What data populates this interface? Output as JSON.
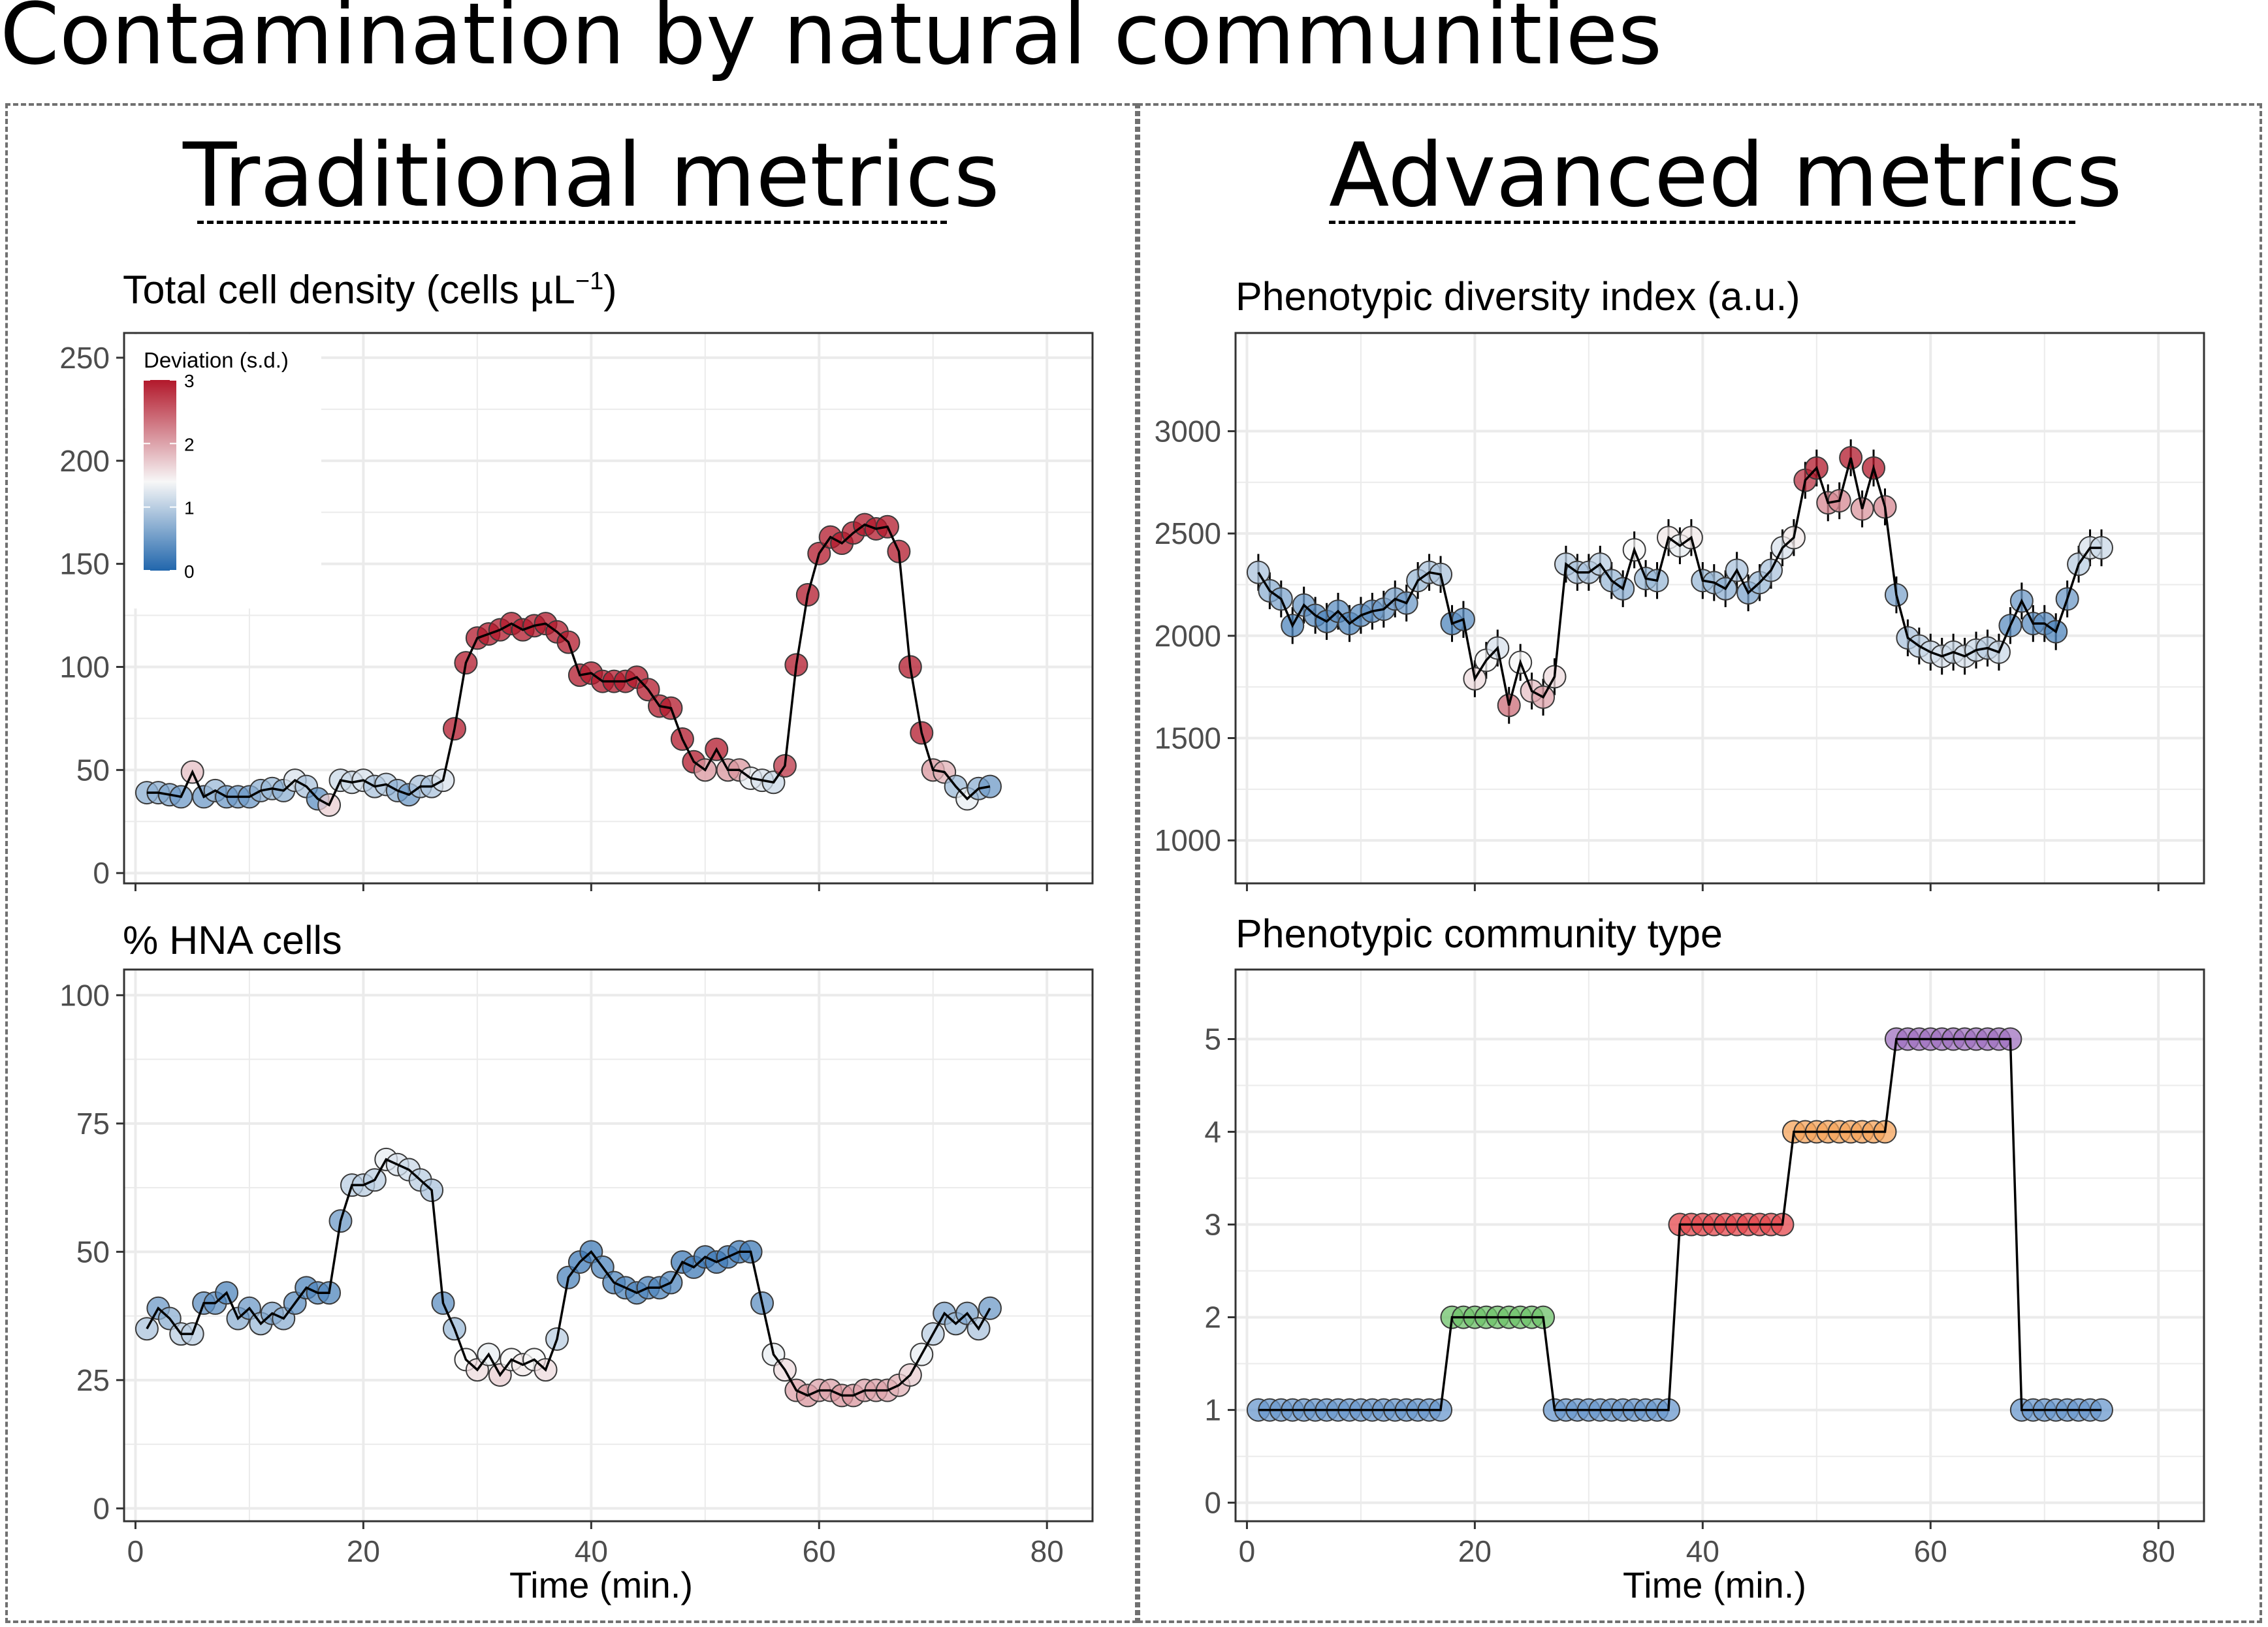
{
  "main_title": "Contamination by natural communities",
  "left_heading": "Traditional metrics",
  "right_heading": "Advanced metrics",
  "colors": {
    "line": "#000000",
    "panel_border": "#333333",
    "grid": "#ebebeb",
    "dashed_box": "#707070",
    "deviation_low": "#2166ac",
    "deviation_mid": "#f7f7f7",
    "deviation_high": "#b2182b",
    "community_type": {
      "1": "#6a98cd",
      "2": "#6dc26a",
      "3": "#e6484d",
      "4": "#f5a45b",
      "5": "#a072c0"
    }
  },
  "chart_data": [
    {
      "id": "density",
      "type": "scatter",
      "title": "Total cell density (cells µL",
      "title_sup": "−1",
      "title_end": ")",
      "xlabel": "",
      "xlim": [
        -1,
        84
      ],
      "ylim": [
        -5,
        262
      ],
      "xticks": [
        0,
        20,
        40,
        60,
        80
      ],
      "yticks": [
        0,
        50,
        100,
        150,
        200,
        250
      ],
      "x_tick_labels_shown": false,
      "grid": true,
      "legend": {
        "title": "Deviation (s.d.)",
        "labels": [
          "3",
          "2",
          "1",
          "0"
        ],
        "values": [
          3,
          2,
          1,
          0
        ],
        "placement": "top-left"
      },
      "colorby": "deviation",
      "x": [
        1,
        2,
        3,
        4,
        5,
        6,
        7,
        8,
        9,
        10,
        11,
        12,
        13,
        14,
        15,
        16,
        17,
        18,
        19,
        20,
        21,
        22,
        23,
        24,
        25,
        26,
        27,
        28,
        29,
        30,
        31,
        32,
        33,
        34,
        35,
        36,
        37,
        38,
        39,
        40,
        41,
        42,
        43,
        44,
        45,
        46,
        47,
        48,
        49,
        50,
        51,
        52,
        53,
        54,
        55,
        56,
        57,
        58,
        59,
        60,
        61,
        62,
        63,
        64,
        65,
        66,
        67,
        68,
        69,
        70,
        71,
        72,
        73,
        74,
        75
      ],
      "y": [
        39,
        39,
        38,
        37,
        49,
        37,
        40,
        37,
        37,
        37,
        40,
        41,
        40,
        45,
        42,
        36,
        33,
        45,
        44,
        45,
        42,
        43,
        40,
        38,
        42,
        42,
        45,
        70,
        102,
        114,
        116,
        118,
        121,
        118,
        120,
        121,
        117,
        112,
        96,
        97,
        93,
        93,
        93,
        95,
        89,
        81,
        80,
        65,
        54,
        50,
        60,
        50,
        50,
        46,
        45,
        44,
        52,
        101,
        135,
        155,
        163,
        160,
        165,
        169,
        167,
        168,
        156,
        100,
        68,
        50,
        49,
        42,
        36,
        41,
        42
      ],
      "deviation": [
        0.7,
        0.7,
        0.6,
        0.5,
        1.8,
        0.5,
        0.8,
        0.5,
        0.5,
        0.5,
        0.7,
        0.8,
        0.7,
        1.2,
        0.9,
        0.4,
        1.7,
        1.1,
        1.1,
        1.2,
        0.9,
        1,
        0.7,
        0.5,
        0.9,
        0.9,
        1.2,
        3,
        3,
        3,
        3,
        3,
        3,
        3,
        3,
        3,
        3,
        3,
        3,
        3,
        3,
        3,
        3,
        3,
        3,
        3,
        3,
        3,
        3,
        2.1,
        3,
        2.1,
        2.1,
        1.3,
        1.2,
        1.1,
        2.8,
        3,
        3,
        3,
        3,
        3,
        3,
        3,
        3,
        3,
        3,
        3,
        3,
        2.1,
        1.9,
        0.8,
        1.3,
        0.7,
        0.5
      ]
    },
    {
      "id": "hna",
      "type": "scatter",
      "title": "% HNA cells",
      "xlabel": "Time (min.)",
      "xlim": [
        -1,
        84
      ],
      "ylim": [
        -2.5,
        105
      ],
      "xticks": [
        0,
        20,
        40,
        60,
        80
      ],
      "yticks": [
        0,
        25,
        50,
        75,
        100
      ],
      "x_tick_labels_shown": true,
      "grid": true,
      "colorby": "deviation",
      "x": [
        1,
        2,
        3,
        4,
        5,
        6,
        7,
        8,
        9,
        10,
        11,
        12,
        13,
        14,
        15,
        16,
        17,
        18,
        19,
        20,
        21,
        22,
        23,
        24,
        25,
        26,
        27,
        28,
        29,
        30,
        31,
        32,
        33,
        34,
        35,
        36,
        37,
        38,
        39,
        40,
        41,
        42,
        43,
        44,
        45,
        46,
        47,
        48,
        49,
        50,
        51,
        52,
        53,
        54,
        55,
        56,
        57,
        58,
        59,
        60,
        61,
        62,
        63,
        64,
        65,
        66,
        67,
        68,
        69,
        70,
        71,
        72,
        73,
        74,
        75
      ],
      "y": [
        35,
        39,
        37,
        34,
        34,
        40,
        40,
        42,
        37,
        39,
        36,
        38,
        37,
        40,
        43,
        42,
        42,
        56,
        63,
        63,
        64,
        68,
        67,
        66,
        64,
        62,
        40,
        35,
        29,
        27,
        30,
        26,
        29,
        28,
        29,
        27,
        33,
        45,
        48,
        50,
        47,
        44,
        43,
        42,
        43,
        43,
        44,
        48,
        47,
        49,
        48,
        49,
        50,
        50,
        40,
        30,
        27,
        23,
        22,
        23,
        23,
        22,
        22,
        23,
        23,
        23,
        24,
        26,
        30,
        34,
        38,
        36,
        38,
        35,
        39
      ],
      "deviation": [
        0.9,
        0.5,
        0.7,
        1,
        1,
        0.4,
        0.4,
        0.3,
        0.7,
        0.5,
        0.8,
        0.6,
        0.7,
        0.4,
        0.3,
        0.3,
        0.3,
        0.5,
        1,
        1,
        1,
        1.3,
        1.2,
        1.1,
        1,
        0.9,
        0.4,
        0.8,
        1.4,
        1.6,
        1.3,
        1.7,
        1.4,
        1.5,
        1.4,
        1.6,
        1,
        0.3,
        0.2,
        0.2,
        0.3,
        0.3,
        0.3,
        0.3,
        0.3,
        0.3,
        0.3,
        0.2,
        0.2,
        0.2,
        0.2,
        0.2,
        0.2,
        0.2,
        0.4,
        1.3,
        1.6,
        2,
        2.1,
        2,
        2,
        2.1,
        2.1,
        2,
        2,
        2,
        1.9,
        1.7,
        1.3,
        1,
        0.6,
        0.8,
        0.6,
        0.9,
        0.5
      ]
    },
    {
      "id": "diversity",
      "type": "scatter",
      "title": "Phenotypic diversity index (a.u.)",
      "xlabel": "",
      "xlim": [
        -1,
        84
      ],
      "ylim": [
        790,
        3480
      ],
      "xticks": [
        0,
        20,
        40,
        60,
        80
      ],
      "yticks": [
        1000,
        1500,
        2000,
        2500,
        3000
      ],
      "x_tick_labels_shown": false,
      "grid": true,
      "colorby": "deviation",
      "error": 90,
      "x": [
        1,
        2,
        3,
        4,
        5,
        6,
        7,
        8,
        9,
        10,
        11,
        12,
        13,
        14,
        15,
        16,
        17,
        18,
        19,
        20,
        21,
        22,
        23,
        24,
        25,
        26,
        27,
        28,
        29,
        30,
        31,
        32,
        33,
        34,
        35,
        36,
        37,
        38,
        39,
        40,
        41,
        42,
        43,
        44,
        45,
        46,
        47,
        48,
        49,
        50,
        51,
        52,
        53,
        54,
        55,
        56,
        57,
        58,
        59,
        60,
        61,
        62,
        63,
        64,
        65,
        66,
        67,
        68,
        69,
        70,
        71,
        72,
        73,
        74,
        75
      ],
      "y": [
        2310,
        2220,
        2180,
        2050,
        2150,
        2100,
        2070,
        2120,
        2060,
        2100,
        2120,
        2130,
        2180,
        2160,
        2270,
        2310,
        2300,
        2060,
        2080,
        1790,
        1880,
        1940,
        1660,
        1870,
        1730,
        1700,
        1800,
        2350,
        2310,
        2310,
        2350,
        2270,
        2230,
        2420,
        2280,
        2270,
        2480,
        2440,
        2480,
        2270,
        2260,
        2230,
        2320,
        2210,
        2260,
        2320,
        2430,
        2480,
        2760,
        2820,
        2650,
        2660,
        2870,
        2620,
        2820,
        2630,
        2200,
        1990,
        1950,
        1920,
        1900,
        1920,
        1900,
        1930,
        1940,
        1920,
        2050,
        2170,
        2060,
        2060,
        2020,
        2180,
        2350,
        2430,
        2430
      ],
      "deviation": [
        0.9,
        0.7,
        0.6,
        0.3,
        0.5,
        0.4,
        0.3,
        0.4,
        0.3,
        0.4,
        0.4,
        0.5,
        0.6,
        0.5,
        0.8,
        0.9,
        0.9,
        0.3,
        0.4,
        1.6,
        1.4,
        1.2,
        2.4,
        1.4,
        1.8,
        2,
        1.6,
        1,
        0.9,
        0.9,
        1,
        0.8,
        0.7,
        1.4,
        0.8,
        0.8,
        1.5,
        1.3,
        1.5,
        0.8,
        0.8,
        0.7,
        0.9,
        0.6,
        0.8,
        0.9,
        1.2,
        1.5,
        2.8,
        3,
        2.2,
        2.2,
        3,
        2.1,
        3,
        2.2,
        0.6,
        0.9,
        1,
        1.1,
        1.2,
        1.1,
        1.2,
        1.1,
        1,
        1.1,
        0.4,
        0.5,
        0.4,
        0.4,
        0.3,
        0.5,
        1,
        1.2,
        1.1
      ]
    },
    {
      "id": "community",
      "type": "scatter",
      "title": "Phenotypic community type",
      "xlabel": "Time (min.)",
      "xlim": [
        -1,
        84
      ],
      "ylim": [
        -0.2,
        5.75
      ],
      "xticks": [
        0,
        20,
        40,
        60,
        80
      ],
      "yticks": [
        0,
        1,
        2,
        3,
        4,
        5
      ],
      "x_tick_labels_shown": true,
      "grid": true,
      "colorby": "type",
      "x": [
        1,
        2,
        3,
        4,
        5,
        6,
        7,
        8,
        9,
        10,
        11,
        12,
        13,
        14,
        15,
        16,
        17,
        18,
        19,
        20,
        21,
        22,
        23,
        24,
        25,
        26,
        27,
        28,
        29,
        30,
        31,
        32,
        33,
        34,
        35,
        36,
        37,
        38,
        39,
        40,
        41,
        42,
        43,
        44,
        45,
        46,
        47,
        48,
        49,
        50,
        51,
        52,
        53,
        54,
        55,
        56,
        57,
        58,
        59,
        60,
        61,
        62,
        63,
        64,
        65,
        66,
        67,
        68,
        69,
        70,
        71,
        72,
        73,
        74,
        75
      ],
      "y": [
        1,
        1,
        1,
        1,
        1,
        1,
        1,
        1,
        1,
        1,
        1,
        1,
        1,
        1,
        1,
        1,
        1,
        2,
        2,
        2,
        2,
        2,
        2,
        2,
        2,
        2,
        1,
        1,
        1,
        1,
        1,
        1,
        1,
        1,
        1,
        1,
        1,
        3,
        3,
        3,
        3,
        3,
        3,
        3,
        3,
        3,
        3,
        4,
        4,
        4,
        4,
        4,
        4,
        4,
        4,
        4,
        5,
        5,
        5,
        5,
        5,
        5,
        5,
        5,
        5,
        5,
        5,
        1,
        1,
        1,
        1,
        1,
        1,
        1,
        1
      ]
    }
  ]
}
